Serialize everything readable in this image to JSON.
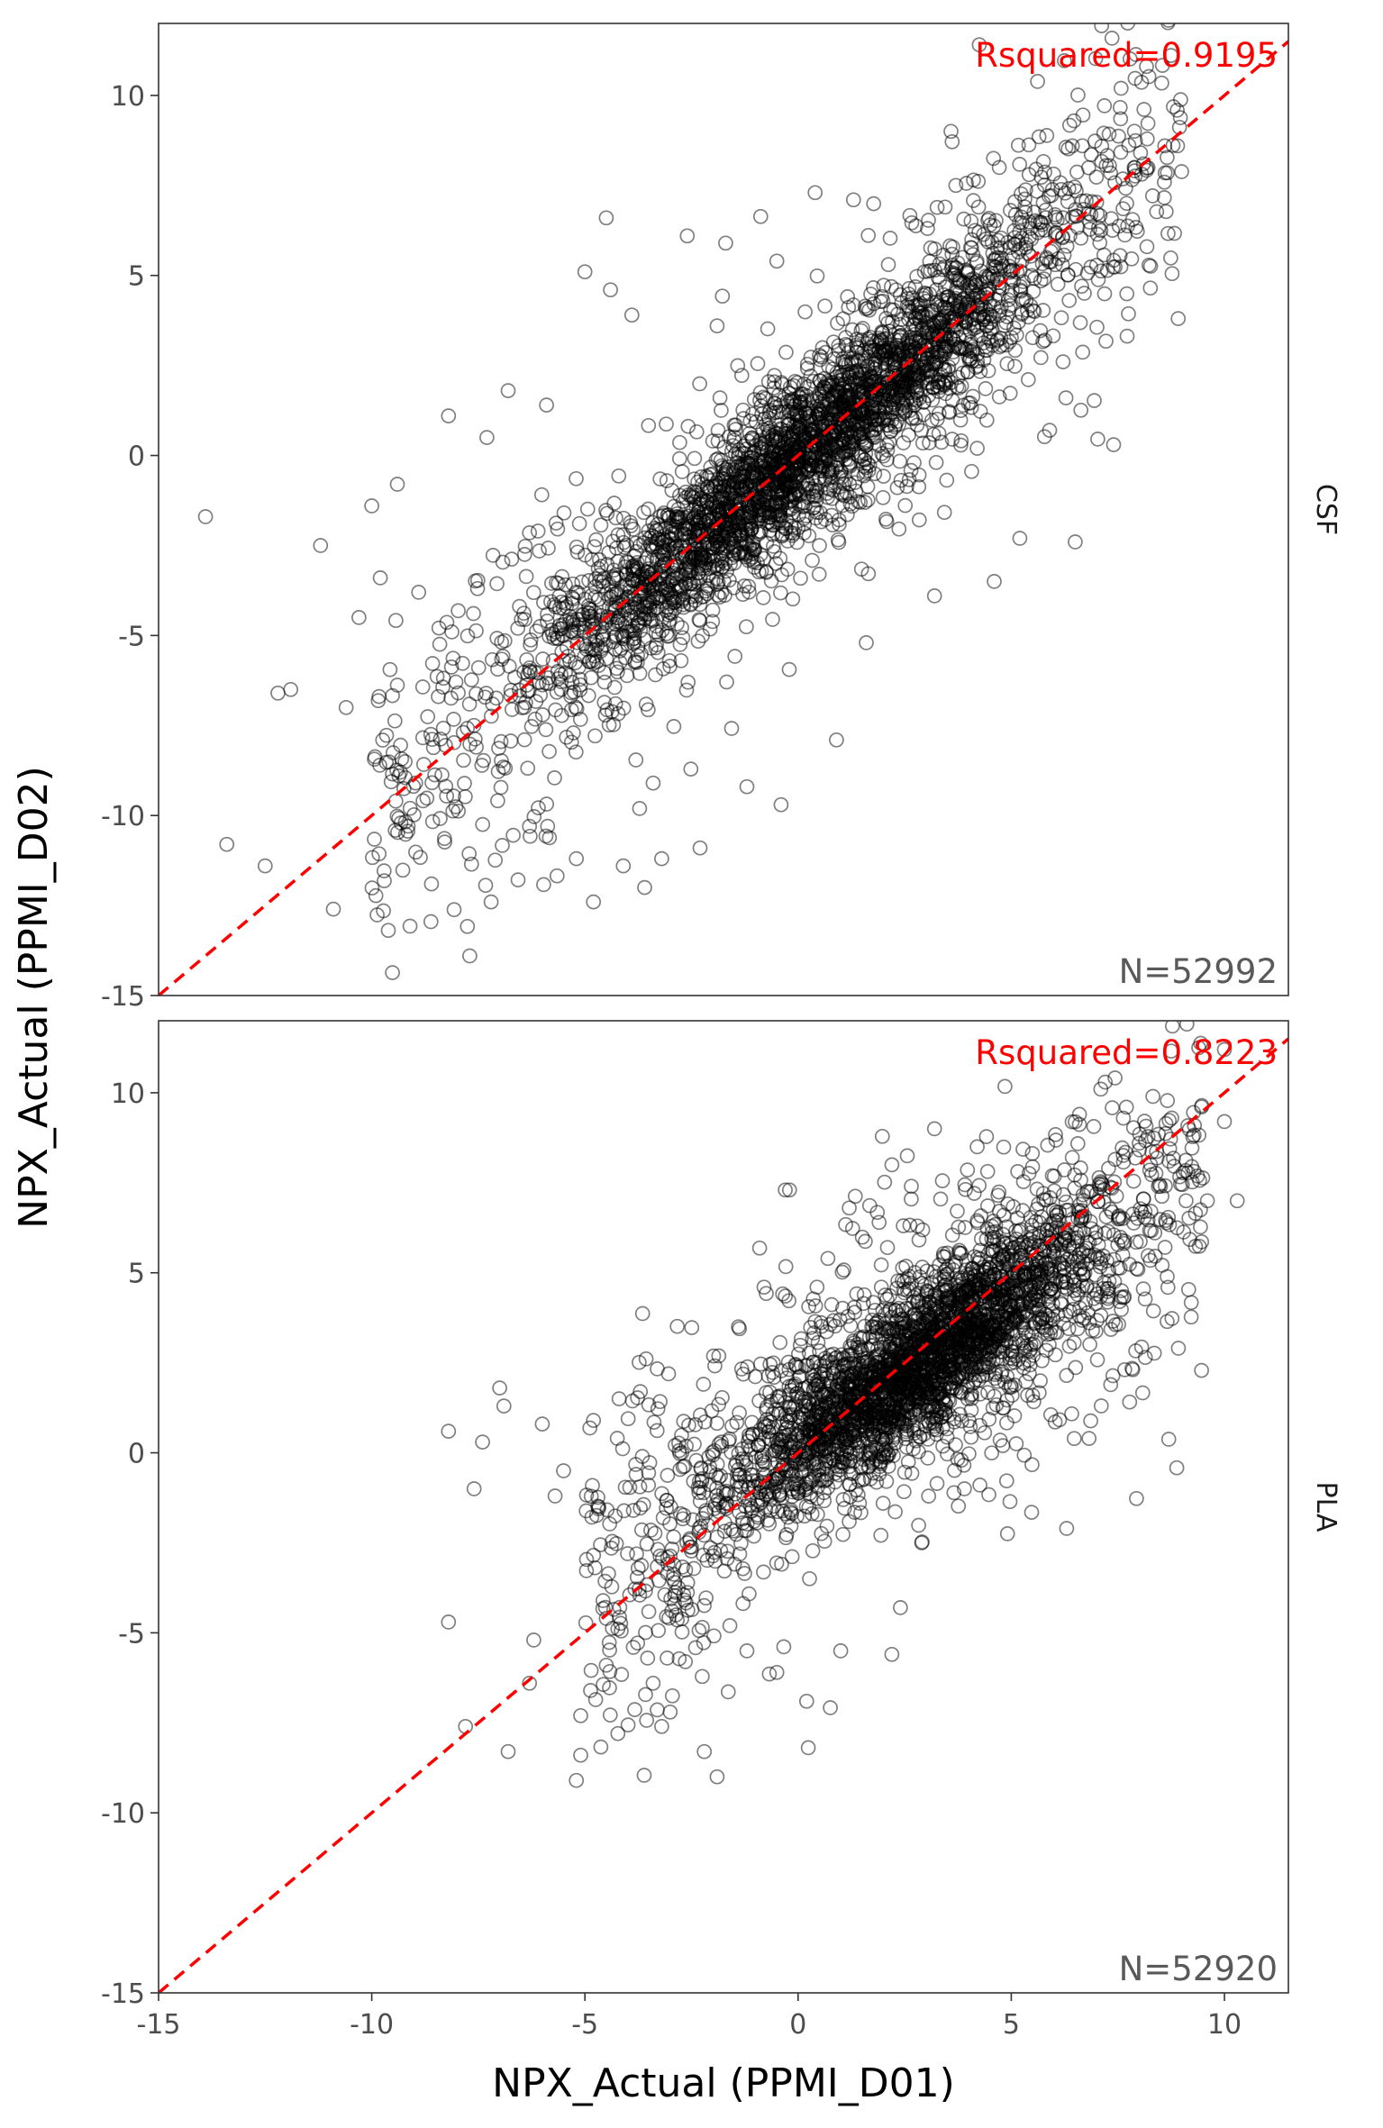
{
  "chart_data": {
    "type": "scatter",
    "xlabel": "NPX_Actual (PPMI_D01)",
    "ylabel": "NPX_Actual (PPMI_D02)",
    "xlim": [
      -15,
      11.5
    ],
    "ylim": [
      -15,
      12
    ],
    "x_ticks": [
      -15,
      -10,
      -5,
      0,
      5,
      10
    ],
    "y_ticks": [
      -15,
      -10,
      -5,
      0,
      5,
      10
    ],
    "grid": false,
    "reference_line": {
      "slope": 1,
      "intercept": 0,
      "color": "#ff0000",
      "style": "dashed"
    },
    "point_style": {
      "shape": "open-circle",
      "color": "#000000",
      "opacity": 0.5
    },
    "facets": [
      {
        "strip": "CSF",
        "rsquared_label": "Rsquared=0.9195",
        "n_label": "N=52992",
        "n": 52992,
        "rsquared": 0.9195,
        "core": {
          "x_range": [
            -8,
            8
          ],
          "slope": 1.0,
          "intercept": 0.0,
          "spread": 1.0
        },
        "outliers": [
          {
            "x": -13.9,
            "y": -1.7
          },
          {
            "x": -13.4,
            "y": -10.8
          },
          {
            "x": -12.5,
            "y": -11.4
          },
          {
            "x": -12.2,
            "y": -6.6
          },
          {
            "x": -11.9,
            "y": -6.5
          },
          {
            "x": -10.9,
            "y": -12.6
          },
          {
            "x": -10.6,
            "y": -7.0
          },
          {
            "x": -10.3,
            "y": -4.5
          },
          {
            "x": -10.0,
            "y": -1.4
          },
          {
            "x": -9.8,
            "y": -3.4
          },
          {
            "x": -9.4,
            "y": -0.8
          },
          {
            "x": -8.9,
            "y": -3.8
          },
          {
            "x": -8.6,
            "y": -11.9
          },
          {
            "x": -8.2,
            "y": 1.1
          },
          {
            "x": -7.7,
            "y": -13.9
          },
          {
            "x": -7.3,
            "y": 0.5
          },
          {
            "x": -7.2,
            "y": -12.4
          },
          {
            "x": -6.8,
            "y": 1.8
          },
          {
            "x": -5.9,
            "y": 1.4
          },
          {
            "x": -5.2,
            "y": -11.2
          },
          {
            "x": -4.8,
            "y": -12.4
          },
          {
            "x": -4.5,
            "y": 6.6
          },
          {
            "x": -5.0,
            "y": 5.1
          },
          {
            "x": -4.4,
            "y": 4.6
          },
          {
            "x": -4.1,
            "y": -11.4
          },
          {
            "x": -3.9,
            "y": 3.9
          },
          {
            "x": -3.6,
            "y": -12.0
          },
          {
            "x": -2.6,
            "y": 6.1
          },
          {
            "x": -1.7,
            "y": 5.9
          },
          {
            "x": -0.5,
            "y": 5.4
          },
          {
            "x": 0.4,
            "y": 7.3
          },
          {
            "x": 1.3,
            "y": 7.1
          },
          {
            "x": 3.7,
            "y": 7.5
          },
          {
            "x": -3.2,
            "y": -11.2
          },
          {
            "x": -1.2,
            "y": -9.2
          },
          {
            "x": -0.4,
            "y": -9.7
          },
          {
            "x": 0.9,
            "y": -7.9
          },
          {
            "x": 3.2,
            "y": -3.9
          },
          {
            "x": 4.6,
            "y": -3.5
          },
          {
            "x": 5.2,
            "y": -2.3
          },
          {
            "x": 6.5,
            "y": -2.4
          },
          {
            "x": 7.4,
            "y": 0.3
          },
          {
            "x": -6.3,
            "y": -10.3
          },
          {
            "x": -2.3,
            "y": -10.9
          },
          {
            "x": 1.6,
            "y": -5.2
          },
          {
            "x": -11.2,
            "y": -2.5
          },
          {
            "x": -9.1,
            "y": -9.8
          },
          {
            "x": 2.3,
            "y": 4.6
          },
          {
            "x": 5.9,
            "y": 0.7
          },
          {
            "x": 4.2,
            "y": 0.2
          },
          {
            "x": -6.1,
            "y": -2.1
          },
          {
            "x": -3.4,
            "y": -9.1
          },
          {
            "x": -1.9,
            "y": 3.6
          },
          {
            "x": 8.9,
            "y": 8.6
          },
          {
            "x": 8.6,
            "y": 8.6
          },
          {
            "x": 8.1,
            "y": 8.1
          },
          {
            "x": 7.9,
            "y": 8.0
          }
        ]
      },
      {
        "strip": "PLA",
        "rsquared_label": "Rsquared=0.8223",
        "n_label": "N=52920",
        "n": 52920,
        "rsquared": 0.8223,
        "core": {
          "x_range": [
            -3,
            8.5
          ],
          "slope": 0.78,
          "intercept": 0.3,
          "spread": 1.05
        },
        "outliers": [
          {
            "x": -8.2,
            "y": 0.6
          },
          {
            "x": -8.2,
            "y": -4.7
          },
          {
            "x": -7.8,
            "y": -7.6
          },
          {
            "x": -7.4,
            "y": 0.3
          },
          {
            "x": -7.0,
            "y": 1.8
          },
          {
            "x": -6.9,
            "y": 1.3
          },
          {
            "x": -7.6,
            "y": -1.0
          },
          {
            "x": -6.8,
            "y": -8.3
          },
          {
            "x": -6.3,
            "y": -6.4
          },
          {
            "x": -6.2,
            "y": -5.2
          },
          {
            "x": -5.7,
            "y": -1.2
          },
          {
            "x": -5.2,
            "y": -9.1
          },
          {
            "x": -5.1,
            "y": -7.3
          },
          {
            "x": -5.1,
            "y": -8.4
          },
          {
            "x": -4.5,
            "y": -4.6
          },
          {
            "x": -4.5,
            "y": -5.9
          },
          {
            "x": -4.2,
            "y": 1.5
          },
          {
            "x": -3.4,
            "y": -6.4
          },
          {
            "x": -3.2,
            "y": -7.6
          },
          {
            "x": -3.0,
            "y": -7.2
          },
          {
            "x": -2.2,
            "y": -8.3
          },
          {
            "x": -1.9,
            "y": -9.0
          },
          {
            "x": -2.9,
            "y": -4.2
          },
          {
            "x": -1.4,
            "y": 3.5
          },
          {
            "x": -0.8,
            "y": 4.6
          },
          {
            "x": -0.3,
            "y": 7.3
          },
          {
            "x": -0.2,
            "y": 7.3
          },
          {
            "x": 0.7,
            "y": 5.4
          },
          {
            "x": 1.2,
            "y": 6.8
          },
          {
            "x": 1.9,
            "y": 6.4
          },
          {
            "x": 2.2,
            "y": 8.0
          },
          {
            "x": 2.8,
            "y": 6.3
          },
          {
            "x": 3.2,
            "y": 9.0
          },
          {
            "x": 4.2,
            "y": 8.5
          },
          {
            "x": 6.6,
            "y": 9.4
          },
          {
            "x": 7.1,
            "y": 10.1
          },
          {
            "x": 7.7,
            "y": 9.6
          },
          {
            "x": 8.5,
            "y": 7.4
          },
          {
            "x": 9.1,
            "y": 7.0
          },
          {
            "x": 9.6,
            "y": 7.0
          },
          {
            "x": 10.3,
            "y": 7.0
          },
          {
            "x": 10.0,
            "y": 9.2
          },
          {
            "x": 6.3,
            "y": -2.1
          },
          {
            "x": 4.8,
            "y": 0.2
          },
          {
            "x": 5.5,
            "y": 1.6
          },
          {
            "x": 2.4,
            "y": -4.3
          },
          {
            "x": 2.2,
            "y": -5.6
          },
          {
            "x": 1.0,
            "y": -5.5
          },
          {
            "x": 0.2,
            "y": -6.9
          },
          {
            "x": -0.5,
            "y": -6.1
          },
          {
            "x": -1.6,
            "y": -4.8
          },
          {
            "x": -1.2,
            "y": -5.5
          },
          {
            "x": -5.5,
            "y": -0.5
          },
          {
            "x": -6.0,
            "y": 0.8
          },
          {
            "x": -4.8,
            "y": 0.9
          },
          {
            "x": -3.7,
            "y": 1.7
          },
          {
            "x": -3.8,
            "y": -0.6
          },
          {
            "x": -4.0,
            "y": -2.8
          },
          {
            "x": 3.9,
            "y": -1.0
          },
          {
            "x": 2.9,
            "y": -2.5
          },
          {
            "x": 10.0,
            "y": 11.2
          },
          {
            "x": 8.7,
            "y": 8.1
          },
          {
            "x": 8.0,
            "y": 8.6
          }
        ]
      }
    ]
  }
}
